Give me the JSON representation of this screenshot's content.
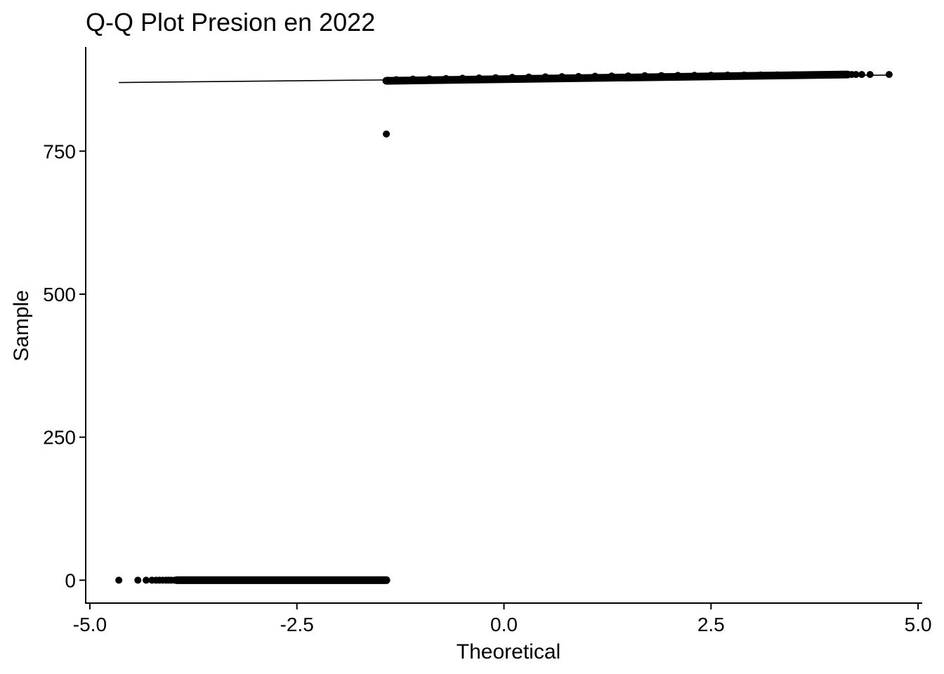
{
  "chart_data": {
    "type": "scatter",
    "title": "Q-Q Plot Presion en 2022",
    "xlabel": "Theoretical",
    "ylabel": "Sample",
    "xlim": [
      -5.05,
      5.05
    ],
    "ylim": [
      -40,
      932
    ],
    "x_ticks": [
      -5.0,
      -2.5,
      0.0,
      2.5,
      5.0
    ],
    "x_tick_labels": [
      "-5.0",
      "-2.5",
      "0.0",
      "2.5",
      "5.0"
    ],
    "y_ticks": [
      0,
      250,
      500,
      750
    ],
    "y_tick_labels": [
      "0",
      "250",
      "500",
      "750"
    ],
    "grid": false,
    "colors": {
      "points": "#000000",
      "line": "#000000",
      "axis": "#000000"
    },
    "reference_line": {
      "x": [
        -4.65,
        4.65
      ],
      "y": [
        870,
        883
      ]
    },
    "series": [
      {
        "points": {
          "x": [
            -4.65,
            -4.42,
            -4.32,
            -4.25,
            -4.2,
            -4.16,
            -4.12,
            -4.08,
            -4.05,
            -4.02,
            -3.98,
            -3.8,
            -3.6,
            -3.4,
            -3.2,
            -3.0,
            -2.8,
            -2.6,
            -2.4,
            -2.2,
            -2.0,
            -1.8,
            -1.6,
            -1.45,
            -1.42,
            -1.42,
            -1.42,
            -1.4,
            -1.3,
            -1.1,
            -0.9,
            -0.7,
            -0.5,
            -0.3,
            -0.1,
            0.1,
            0.3,
            0.5,
            0.7,
            0.9,
            1.1,
            1.3,
            1.5,
            1.7,
            1.9,
            2.1,
            2.3,
            2.5,
            2.7,
            2.9,
            3.1,
            3.3,
            3.5,
            3.7,
            3.9,
            4.05,
            4.12,
            4.16,
            4.2,
            4.25,
            4.32,
            4.42,
            4.65
          ],
          "y": [
            0,
            0,
            0,
            0,
            0,
            0,
            0,
            0,
            0,
            0,
            0,
            0,
            0,
            0,
            0,
            0,
            0,
            0,
            0,
            0,
            0,
            0,
            0,
            0,
            0,
            780,
            873,
            874,
            875,
            876,
            876.5,
            877,
            877.5,
            878,
            878.5,
            879,
            879.5,
            880,
            880.3,
            880.6,
            881,
            881.3,
            881.6,
            882,
            882.2,
            882.4,
            882.6,
            882.8,
            883,
            883,
            883.2,
            883.4,
            883.5,
            883.6,
            883.7,
            883.8,
            883.9,
            884,
            884,
            884,
            884,
            884,
            884
          ]
        },
        "dense_runs": [
          {
            "x": [
              -3.95,
              -1.42
            ],
            "y": [
              0,
              0
            ]
          },
          {
            "x": [
              -1.42,
              4.15
            ],
            "y": [
              873,
              884
            ]
          }
        ]
      }
    ]
  }
}
